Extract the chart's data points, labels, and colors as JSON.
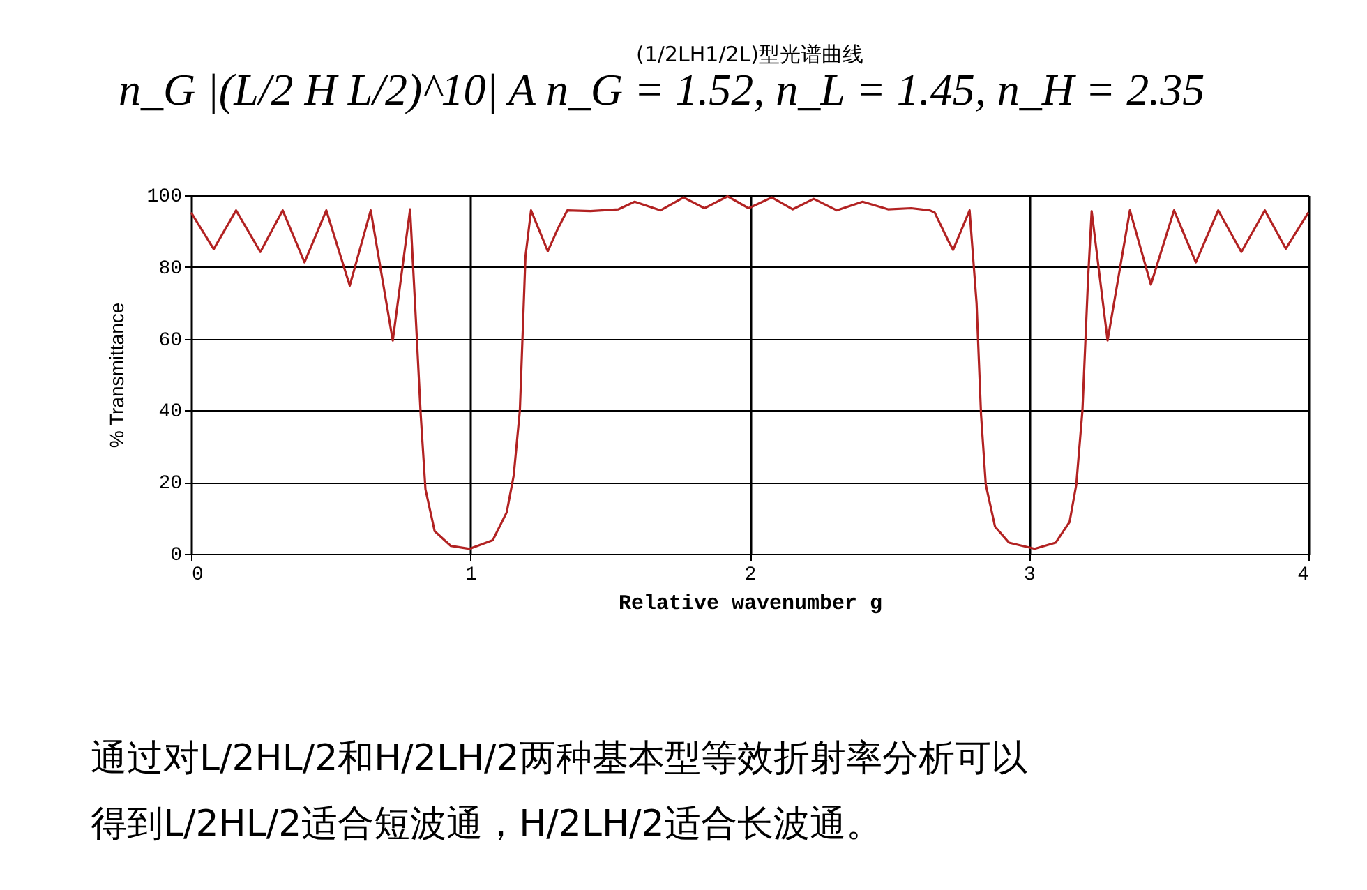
{
  "chart_data": {
    "type": "line",
    "title": "(1/2LH1/2L)型光谱曲线",
    "xlabel": "Relative wavenumber  g",
    "ylabel": "% Transmittance",
    "annotations": [
      "n_G |(L/2 H L/2)^10| A     n_G = 1.52, n_L = 1.45, n_H = 2.35",
      "通过对L/2HL/2和H/2LH/2两种基本型等效折射率分析可以得到L/2HL/2适合短波通，H/2LH/2适合长波通。"
    ],
    "xlim": [
      0,
      4
    ],
    "xticks": [
      0,
      1,
      2,
      3,
      4
    ],
    "ylim": [
      0,
      100
    ],
    "yticks": [
      0,
      20,
      40,
      60,
      80,
      100
    ],
    "grid": true,
    "legend": false,
    "marker": "none",
    "line_style": "solid",
    "series": [
      {
        "color": "#b22222",
        "x": [
          0,
          0.081,
          0.161,
          0.248,
          0.328,
          0.406,
          0.484,
          0.568,
          0.643,
          0.722,
          0.784,
          0.806,
          0.822,
          0.839,
          0.872,
          0.93,
          0.997,
          1.08,
          1.13,
          1.155,
          1.177,
          1.197,
          1.217,
          1.277,
          1.313,
          1.347,
          1.43,
          1.53,
          1.588,
          1.68,
          1.763,
          1.838,
          1.921,
          1.996,
          2.079,
          2.154,
          2.229,
          2.312,
          2.404,
          2.495,
          2.578,
          2.645,
          2.662,
          2.712,
          2.728,
          2.787,
          2.812,
          2.828,
          2.845,
          2.878,
          2.928,
          3.02,
          3.095,
          3.145,
          3.169,
          3.191,
          3.211,
          3.224,
          3.281,
          3.361,
          3.436,
          3.519,
          3.597,
          3.677,
          3.76,
          3.844,
          3.919,
          4.0
        ],
        "values": [
          95.2,
          85,
          95.8,
          84.2,
          95.8,
          81.3,
          95.8,
          74.8,
          95.8,
          59.5,
          96.1,
          63.4,
          38.8,
          18,
          6.3,
          2.2,
          1.4,
          3.8,
          11.6,
          21.9,
          40,
          82.9,
          95.8,
          84.4,
          90.7,
          95.8,
          95.6,
          96.1,
          98.2,
          95.8,
          99.4,
          96.4,
          99.7,
          96.4,
          99.4,
          96.1,
          99,
          95.8,
          98.2,
          96.1,
          96.4,
          95.8,
          95.2,
          87.1,
          84.8,
          95.8,
          69.9,
          38.8,
          19.3,
          7.6,
          3.1,
          1.4,
          3.1,
          8.9,
          19.3,
          40,
          76.4,
          95.6,
          59.5,
          95.8,
          75.1,
          95.8,
          81.3,
          95.8,
          84.2,
          95.8,
          85.1,
          95.2
        ]
      }
    ]
  }
}
